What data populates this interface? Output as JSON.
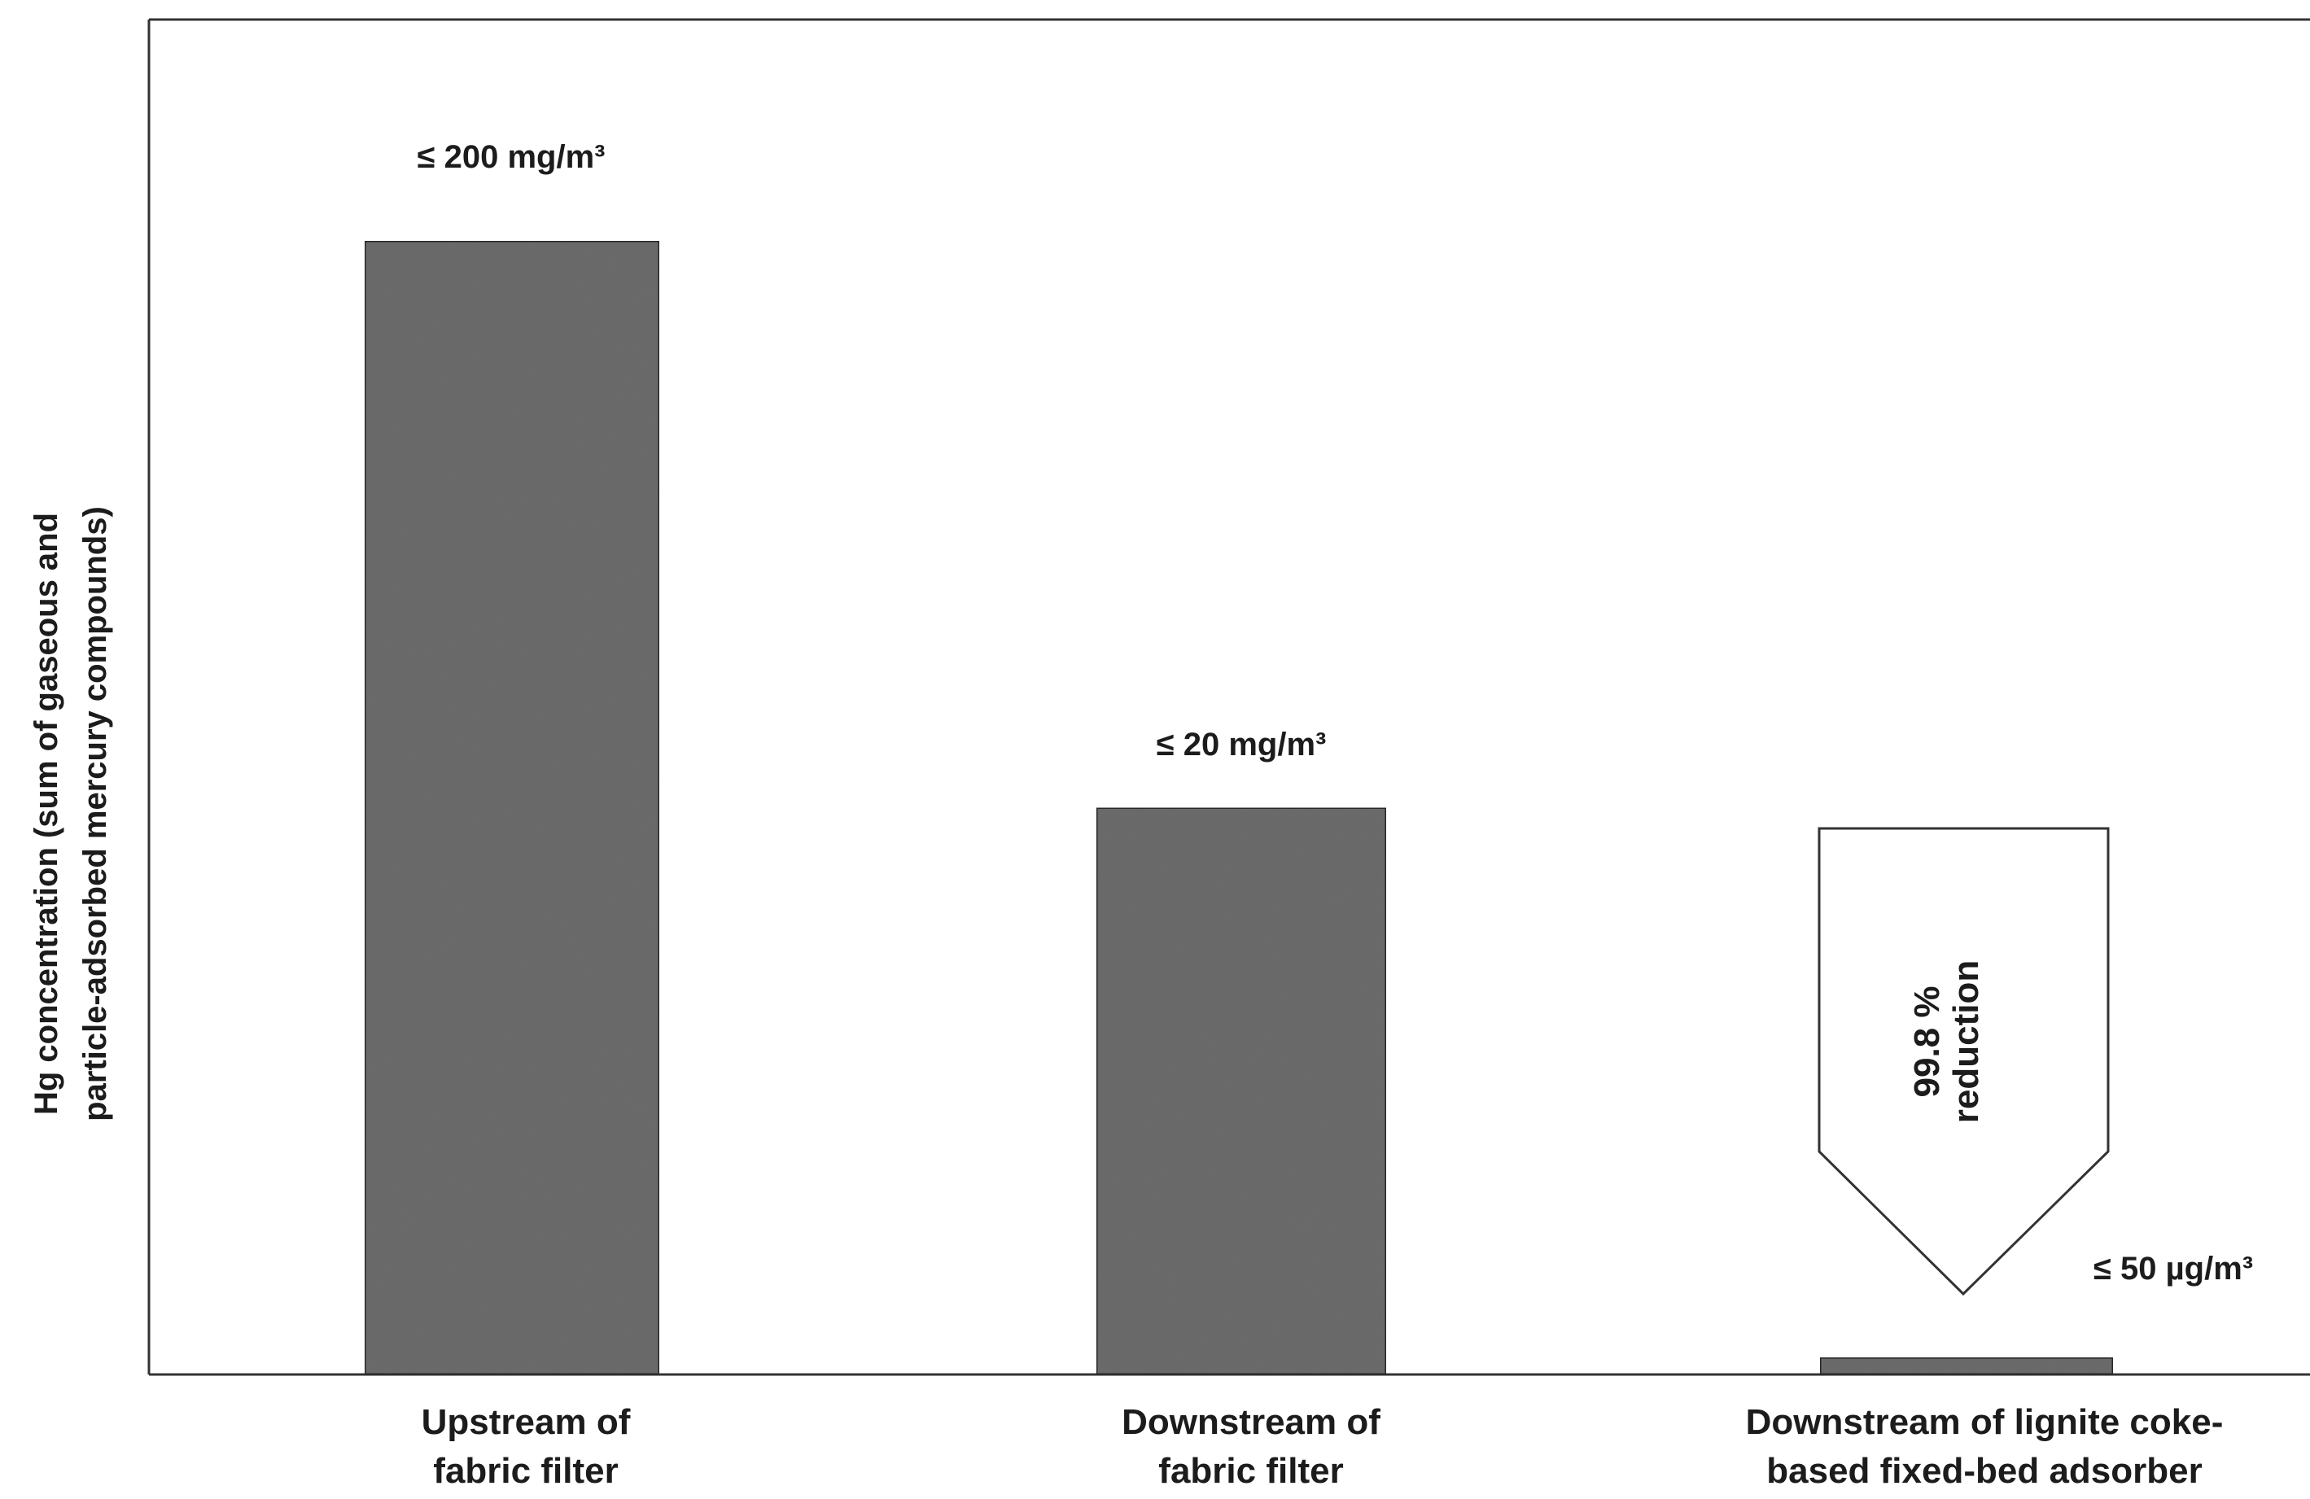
{
  "chart_data": {
    "type": "bar",
    "title": "",
    "xlabel": "",
    "ylabel_lines": [
      "Hg concentration (sum of gaseous and",
      "particle-adsorbed mercury compounds)"
    ],
    "categories": [
      [
        "Upstream of",
        "fabric filter"
      ],
      [
        "Downstream of",
        "fabric filter"
      ],
      [
        "Downstream of lignite coke-",
        "based fixed-bed adsorber"
      ]
    ],
    "values": [
      200,
      100,
      3
    ],
    "data_labels": [
      "≤ 200 mg/m³",
      "≤ 20 mg/m³",
      "≤ 50 µg/m³"
    ],
    "ylim": [
      0,
      200
    ],
    "y_axis_ticks_shown": false,
    "grid": false,
    "legend": "none",
    "annotation": {
      "lines": [
        "99.8 %",
        "reduction"
      ],
      "shape": "down-arrow",
      "at_category": 2
    },
    "colors": {
      "bar_fill": "#6e6e6e",
      "bar_stroke": "#2a2a2a",
      "axis": "#333333",
      "text": "#1c1c1c",
      "arrow_fill": "#ffffff"
    }
  }
}
